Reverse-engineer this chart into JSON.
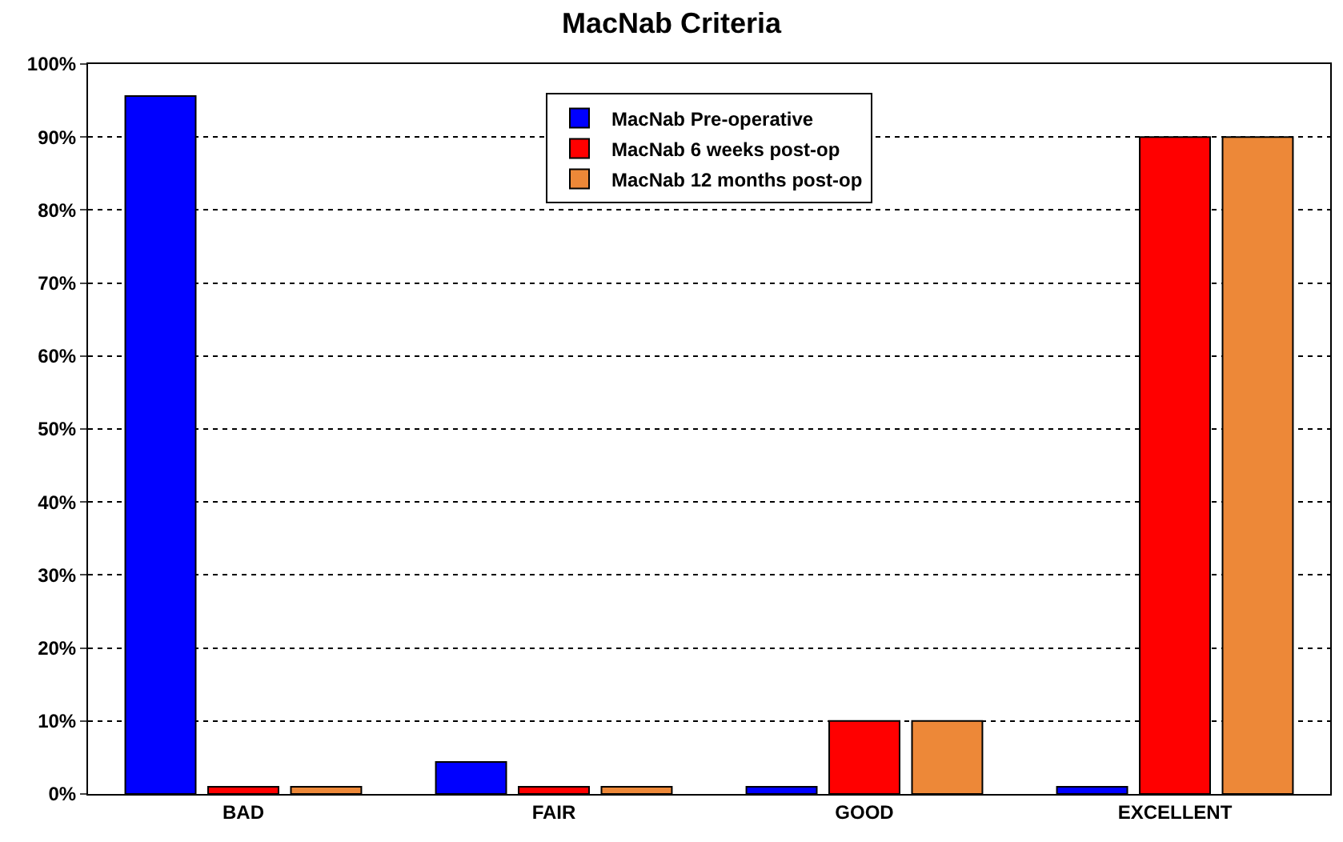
{
  "chart_data": {
    "type": "bar",
    "title": "MacNab Criteria",
    "categories": [
      "BAD",
      "FAIR",
      "GOOD",
      "EXCELLENT"
    ],
    "series": [
      {
        "name": "MacNab Pre-operative",
        "color": "#0000ff",
        "values": [
          95.6,
          4.4,
          1,
          1
        ]
      },
      {
        "name": "MacNab 6 weeks post-op",
        "color": "#ff0000",
        "values": [
          1,
          1,
          10,
          90
        ]
      },
      {
        "name": "MacNab 12 months post-op",
        "color": "#ed8838",
        "values": [
          1,
          1,
          10,
          90
        ]
      }
    ],
    "ylim": [
      0,
      100
    ],
    "yticks": [
      {
        "value": 0,
        "label": "0%"
      },
      {
        "value": 10,
        "label": "10%"
      },
      {
        "value": 20,
        "label": "20%"
      },
      {
        "value": 30,
        "label": "30%"
      },
      {
        "value": 40,
        "label": "40%"
      },
      {
        "value": 50,
        "label": "50%"
      },
      {
        "value": 60,
        "label": "60%"
      },
      {
        "value": 70,
        "label": "70%"
      },
      {
        "value": 80,
        "label": "80%"
      },
      {
        "value": 90,
        "label": "90%"
      },
      {
        "value": 100,
        "label": "100%"
      }
    ],
    "grid": "y",
    "legend": "top"
  }
}
